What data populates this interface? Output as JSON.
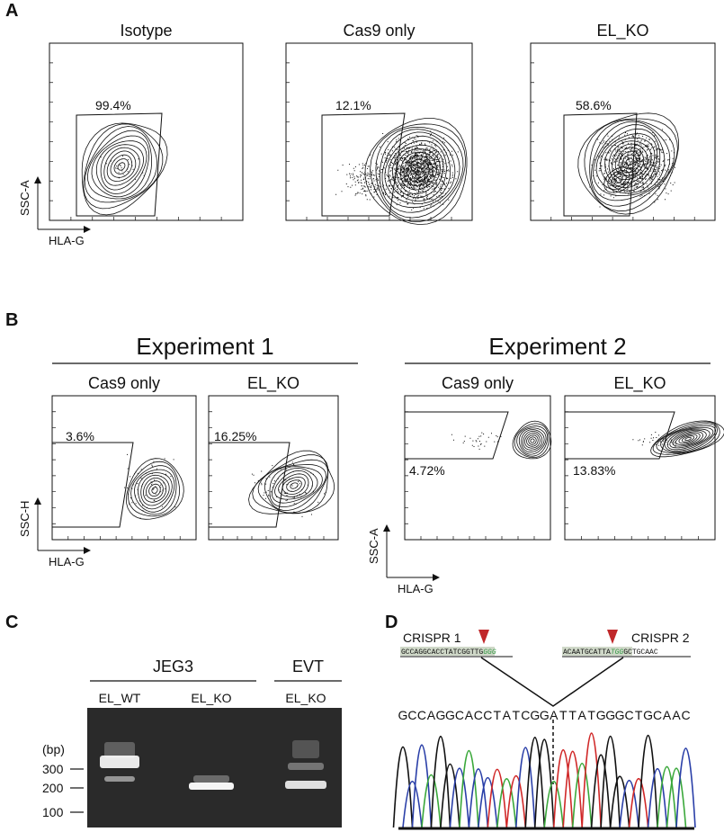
{
  "panel_a": {
    "label": "A",
    "y_axis": "SSC-A",
    "x_axis": "HLA-G",
    "plots": [
      {
        "title": "Isotype",
        "gate": "99.4%"
      },
      {
        "title": "Cas9 only",
        "gate": "12.1%"
      },
      {
        "title": "EL_KO",
        "gate": "58.6%"
      }
    ]
  },
  "panel_b": {
    "label": "B",
    "experiments": [
      {
        "title": "Experiment 1",
        "y_axis": "SSC-H",
        "x_axis": "HLA-G",
        "plots": [
          {
            "title": "Cas9 only",
            "gate": "3.6%"
          },
          {
            "title": "EL_KO",
            "gate": "16.25%"
          }
        ]
      },
      {
        "title": "Experiment 2",
        "y_axis": "SSC-A",
        "x_axis": "HLA-G",
        "plots": [
          {
            "title": "Cas9 only",
            "gate": "4.72%"
          },
          {
            "title": "EL_KO",
            "gate": "13.83%"
          }
        ]
      }
    ]
  },
  "panel_c": {
    "label": "C",
    "groups": [
      "JEG3",
      "EVT"
    ],
    "lanes": [
      "EL_WT",
      "EL_KO",
      "EL_KO"
    ],
    "unit": "(bp)",
    "markers": [
      "300",
      "200",
      "100"
    ]
  },
  "panel_d": {
    "label": "D",
    "crispr": [
      {
        "name": "CRISPR 1",
        "seq": "GCCAGGCACCTATCGGTTG",
        "pam": "GGG"
      },
      {
        "name": "CRISPR 2",
        "seq": "ACAATGCATTA",
        "pam": "TGG",
        "seq_after": "GCTGCAAC"
      }
    ],
    "read": [
      "G",
      "C",
      "C",
      "A",
      "G",
      "G",
      "C",
      "A",
      "C",
      "C",
      "T",
      "A",
      "T",
      "C",
      "G",
      "G",
      "A",
      "T",
      "T",
      "A",
      "T",
      "G",
      "G",
      "G",
      "C",
      "T",
      "G",
      "C",
      "A",
      "A",
      "C"
    ]
  }
}
